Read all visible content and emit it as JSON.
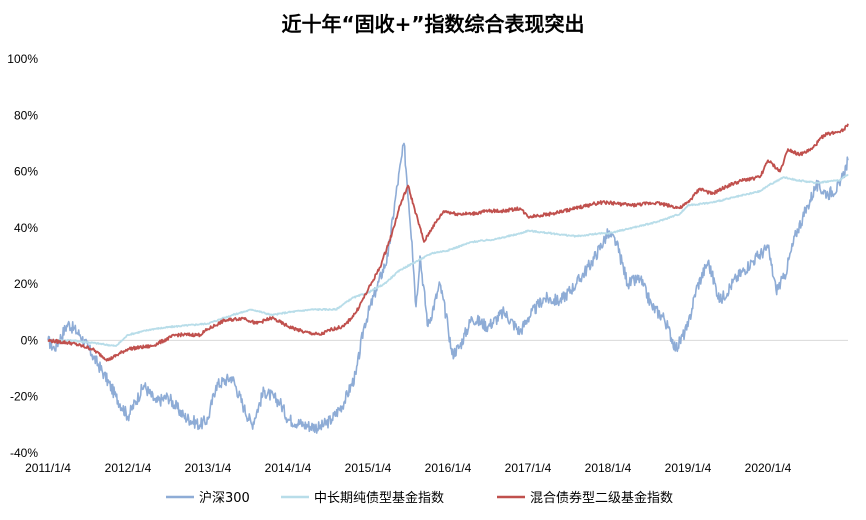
{
  "chart_data": {
    "type": "line",
    "title": "近十年“固收+”指数综合表现突出",
    "xlabel": "",
    "ylabel": "",
    "y_unit": "%",
    "ylim": [
      -40,
      100
    ],
    "y_ticks": [
      -40,
      -20,
      0,
      20,
      40,
      60,
      80,
      100
    ],
    "y_tick_labels": [
      "-40%",
      "-20%",
      "0%",
      "20%",
      "40%",
      "60%",
      "80%",
      "100%"
    ],
    "x_range": [
      2011.0,
      2021.0
    ],
    "x_ticks": [
      2011.0,
      2012.0,
      2013.0,
      2014.0,
      2015.0,
      2016.0,
      2017.0,
      2018.0,
      2019.0,
      2020.0
    ],
    "x_tick_labels": [
      "2011/1/4",
      "2012/1/4",
      "2013/1/4",
      "2014/1/4",
      "2015/1/4",
      "2016/1/4",
      "2017/1/4",
      "2018/1/4",
      "2019/1/4",
      "2020/1/4"
    ],
    "grid": false,
    "legend_position": "bottom",
    "series": [
      {
        "name": "沪深300",
        "color": "#8eacd6",
        "x": [
          2011.0,
          2011.08,
          2011.25,
          2011.4,
          2011.55,
          2011.7,
          2011.85,
          2012.0,
          2012.2,
          2012.35,
          2012.5,
          2012.7,
          2012.9,
          2013.0,
          2013.1,
          2013.3,
          2013.45,
          2013.55,
          2013.7,
          2013.9,
          2014.0,
          2014.2,
          2014.4,
          2014.55,
          2014.7,
          2014.85,
          2014.95,
          2015.1,
          2015.25,
          2015.35,
          2015.45,
          2015.55,
          2015.6,
          2015.65,
          2015.75,
          2015.9,
          2016.0,
          2016.05,
          2016.15,
          2016.3,
          2016.5,
          2016.7,
          2016.9,
          2017.0,
          2017.2,
          2017.4,
          2017.6,
          2017.8,
          2018.0,
          2018.1,
          2018.25,
          2018.4,
          2018.55,
          2018.7,
          2018.85,
          2019.0,
          2019.1,
          2019.25,
          2019.4,
          2019.6,
          2019.8,
          2020.0,
          2020.1,
          2020.2,
          2020.35,
          2020.5,
          2020.6,
          2020.75,
          2020.9,
          2021.0
        ],
        "y": [
          0,
          -3,
          6,
          2,
          -5,
          -12,
          -20,
          -27,
          -16,
          -22,
          -20,
          -27,
          -30,
          -28,
          -16,
          -13,
          -24,
          -30,
          -18,
          -22,
          -28,
          -30,
          -31,
          -28,
          -22,
          -12,
          5,
          18,
          30,
          52,
          70,
          35,
          12,
          30,
          5,
          20,
          5,
          -5,
          -2,
          8,
          5,
          10,
          3,
          8,
          15,
          14,
          20,
          28,
          38,
          35,
          20,
          22,
          12,
          8,
          -3,
          5,
          18,
          28,
          14,
          22,
          28,
          33,
          18,
          22,
          38,
          48,
          55,
          52,
          55,
          64
        ]
      },
      {
        "name": "中长期纯债型基金指数",
        "color": "#b8dde9",
        "x": [
          2011.0,
          2011.3,
          2011.6,
          2011.85,
          2012.0,
          2012.3,
          2012.6,
          2013.0,
          2013.3,
          2013.55,
          2013.8,
          2014.0,
          2014.3,
          2014.6,
          2014.8,
          2015.0,
          2015.2,
          2015.4,
          2015.6,
          2015.8,
          2016.0,
          2016.3,
          2016.6,
          2016.9,
          2017.0,
          2017.3,
          2017.6,
          2017.9,
          2018.0,
          2018.3,
          2018.6,
          2018.9,
          2019.0,
          2019.3,
          2019.6,
          2019.9,
          2020.0,
          2020.2,
          2020.35,
          2020.6,
          2020.9,
          2021.0
        ],
        "y": [
          0,
          0,
          -1,
          -2,
          2,
          4,
          5,
          6,
          9,
          11,
          9,
          10,
          11,
          11,
          15,
          17,
          20,
          25,
          28,
          31,
          32,
          35,
          36,
          38,
          39,
          38,
          37,
          38,
          38,
          40,
          42,
          45,
          48,
          49,
          51,
          53,
          55,
          58,
          57,
          56,
          57,
          59
        ]
      },
      {
        "name": "混合债券型二级基金指数",
        "color": "#c0504d",
        "x": [
          2011.0,
          2011.3,
          2011.55,
          2011.75,
          2012.0,
          2012.3,
          2012.6,
          2012.9,
          2013.0,
          2013.2,
          2013.45,
          2013.6,
          2013.8,
          2014.0,
          2014.2,
          2014.4,
          2014.55,
          2014.7,
          2014.85,
          2015.0,
          2015.15,
          2015.3,
          2015.4,
          2015.5,
          2015.6,
          2015.7,
          2015.8,
          2015.95,
          2016.1,
          2016.3,
          2016.5,
          2016.7,
          2016.9,
          2017.0,
          2017.3,
          2017.6,
          2017.9,
          2018.0,
          2018.3,
          2018.6,
          2018.9,
          2019.0,
          2019.15,
          2019.3,
          2019.5,
          2019.7,
          2019.9,
          2020.0,
          2020.15,
          2020.25,
          2020.4,
          2020.55,
          2020.7,
          2020.85,
          2020.95,
          2021.0
        ],
        "y": [
          0,
          -1,
          -3,
          -7,
          -3,
          -2,
          2,
          2,
          4,
          7,
          8,
          6,
          8,
          5,
          3,
          2,
          4,
          5,
          10,
          18,
          26,
          38,
          48,
          55,
          45,
          35,
          40,
          46,
          45,
          45,
          46,
          46,
          47,
          44,
          45,
          47,
          49,
          49,
          48,
          49,
          47,
          49,
          54,
          52,
          55,
          57,
          58,
          64,
          60,
          68,
          66,
          68,
          73,
          74,
          75,
          77
        ]
      }
    ]
  }
}
